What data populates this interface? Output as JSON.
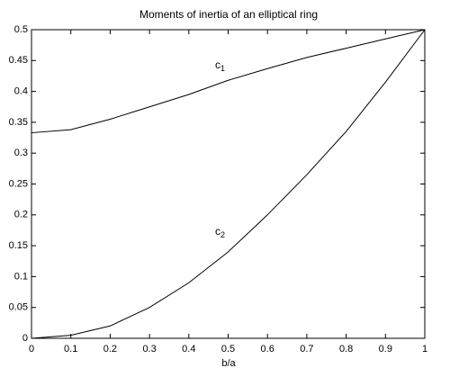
{
  "chart_data": {
    "type": "line",
    "title": "Moments of inertia of an elliptical ring",
    "x_label": "b/a",
    "x": [
      0,
      0.1,
      0.2,
      0.3,
      0.4,
      0.5,
      0.6,
      0.7,
      0.8,
      0.9,
      1
    ],
    "series": [
      {
        "color": "#000000",
        "values": [
          0.333,
          0.338,
          0.355,
          0.375,
          0.395,
          0.418,
          0.437,
          0.455,
          0.47,
          0.485,
          0.5
        ]
      },
      {
        "color": "#000000",
        "values": [
          0,
          0.005,
          0.02,
          0.05,
          0.09,
          0.14,
          0.2,
          0.265,
          0.335,
          0.415,
          0.5
        ]
      }
    ],
    "annotations": [
      {
        "text": "c",
        "subscript": "1"
      },
      {
        "text": "c",
        "subscript": "2"
      }
    ],
    "xlim": [
      0,
      1
    ],
    "xticks": [
      0,
      0.1,
      0.2,
      0.3,
      0.4,
      0.5,
      0.6,
      0.7,
      0.8,
      0.9,
      1
    ],
    "ylim": [
      0,
      0.5
    ],
    "yticks": [
      0,
      0.05,
      0.1,
      0.15,
      0.2,
      0.25,
      0.3,
      0.35,
      0.4,
      0.45,
      0.5
    ]
  }
}
